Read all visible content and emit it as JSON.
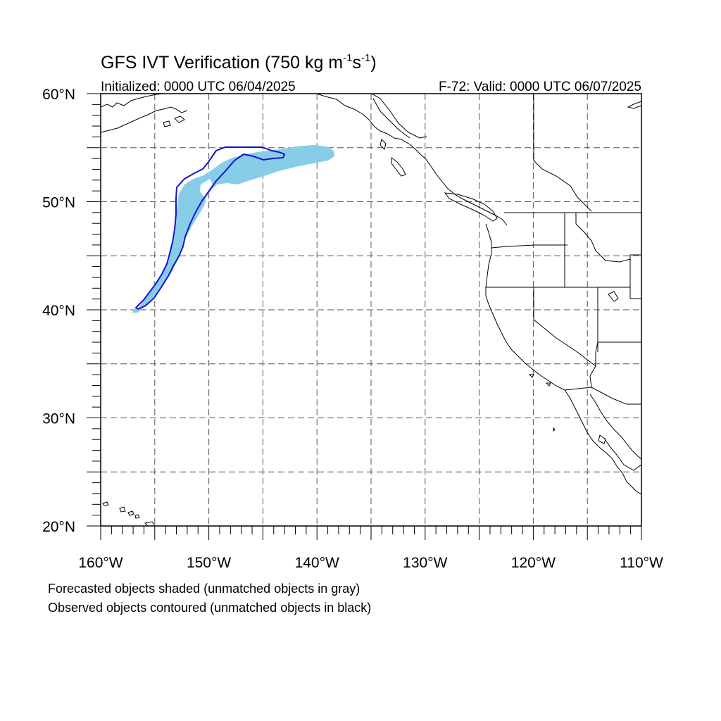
{
  "header": {
    "title": "GFS IVT Verification (750 kg m",
    "title_sup1": "-1",
    "title_mid": "s",
    "title_sup2": "-1",
    "title_end": ")",
    "initialized": "Initialized: 0000 UTC 06/04/2025",
    "valid": "F-72: Valid: 0000 UTC 06/07/2025"
  },
  "axes": {
    "lon_labels": [
      "160°W",
      "150°W",
      "140°W",
      "130°W",
      "120°W",
      "110°W"
    ],
    "lat_labels": [
      "60°N",
      "50°N",
      "40°N",
      "30°N",
      "20°N"
    ],
    "lon_range": [
      -160,
      -110
    ],
    "lat_range": [
      20,
      60
    ]
  },
  "legend": {
    "forecast_note": "Forecasted objects shaded (unmatched objects in gray)",
    "observed_note": "Observed objects contoured (unmatched objects in black)"
  },
  "colors": {
    "forecast_fill": "#87cde8",
    "observed_contour": "#1414d2"
  }
}
